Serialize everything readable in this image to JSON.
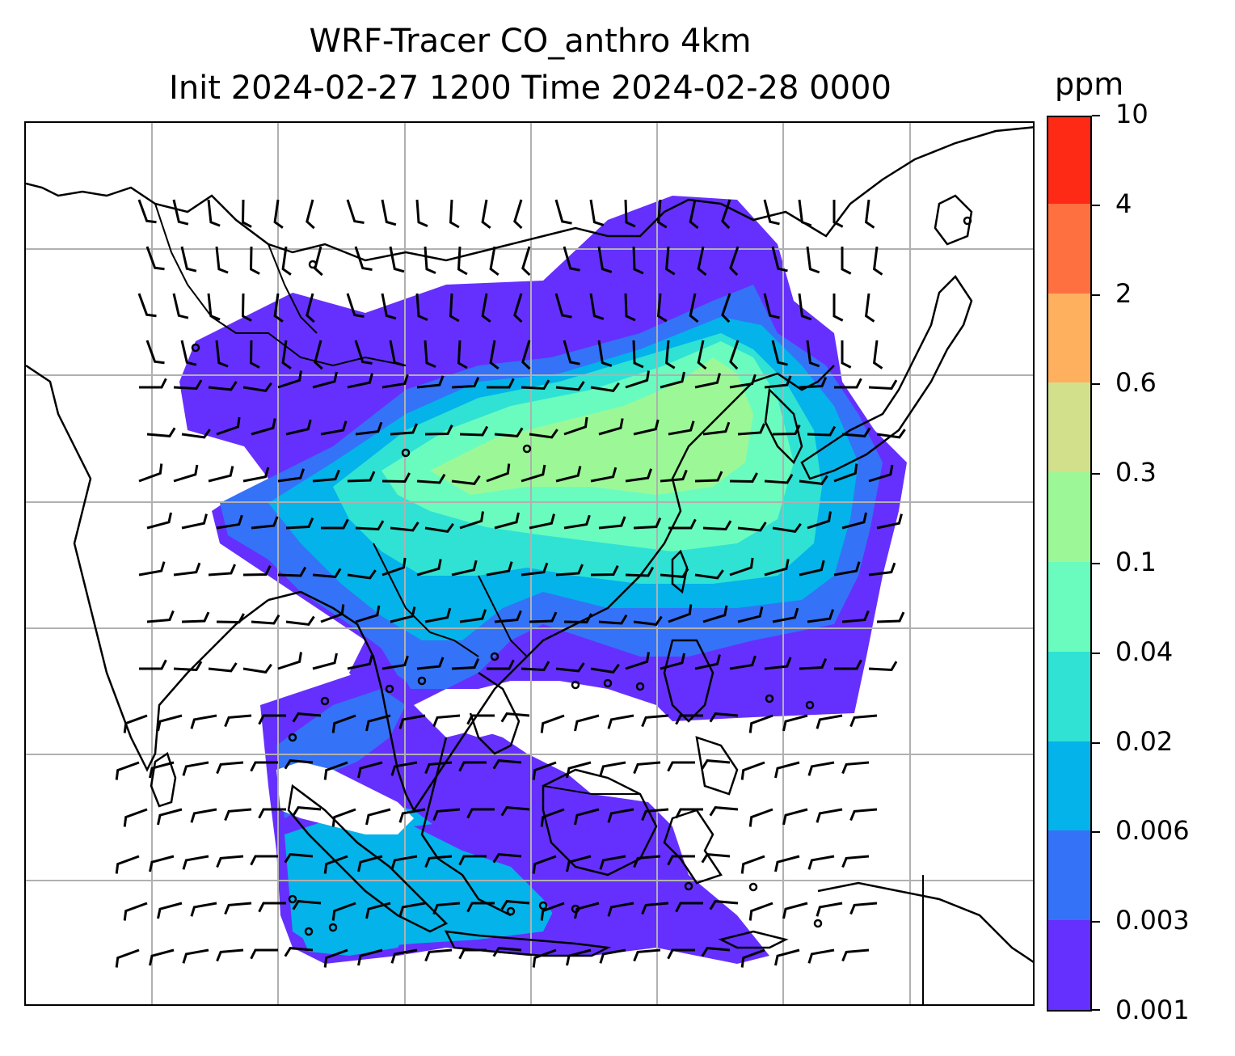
{
  "title": {
    "line1": "WRF-Tracer CO_anthro 4km",
    "line2": "Init 2024-02-27 1200 Time 2024-02-28 0000"
  },
  "colorbar": {
    "unit": "ppm",
    "levels": [
      {
        "label": "0.001",
        "color": "#6530fd"
      },
      {
        "label": "0.003",
        "color": "#3473f7"
      },
      {
        "label": "0.006",
        "color": "#04b3e9"
      },
      {
        "label": "0.02",
        "color": "#2fe2d4"
      },
      {
        "label": "0.04",
        "color": "#6afcbf"
      },
      {
        "label": "0.1",
        "color": "#9cf897"
      },
      {
        "label": "0.3",
        "color": "#d3e08b"
      },
      {
        "label": "0.6",
        "color": "#ffb05e"
      },
      {
        "label": "2",
        "color": "#ff7040"
      },
      {
        "label": "4",
        "color": "#ff2a16"
      },
      {
        "label": "10",
        "color": ""
      }
    ]
  },
  "map": {
    "gridlines": true,
    "features": [
      "coastlines",
      "country-borders",
      "wind-barbs",
      "tracer-concentration-fill"
    ]
  }
}
